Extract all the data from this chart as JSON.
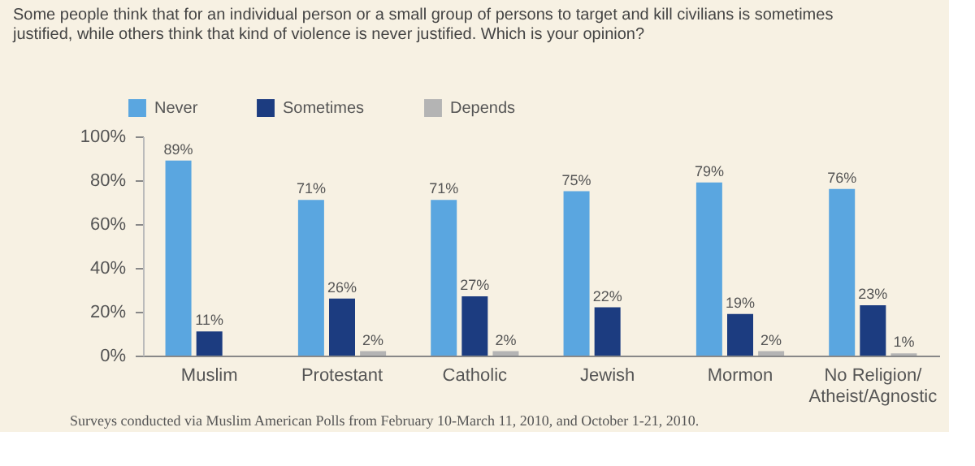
{
  "chart_data": {
    "type": "bar",
    "title": "Some people think that for an individual person or a small group of persons to target and kill civilians is sometimes justified, while others think that kind of violence is never justified. Which is your opinion?",
    "categories": [
      "Muslim",
      "Protestant",
      "Catholic",
      "Jewish",
      "Mormon",
      "No Religion/\nAtheist/Agnostic"
    ],
    "series": [
      {
        "name": "Never",
        "color": "#5aa6e0",
        "values": [
          89,
          71,
          71,
          75,
          79,
          76
        ],
        "value_labels": [
          "89%",
          "71%",
          "71%",
          "75%",
          "79%",
          "76%"
        ]
      },
      {
        "name": "Sometimes",
        "color": "#1c3c80",
        "values": [
          11,
          26,
          27,
          22,
          19,
          23
        ],
        "value_labels": [
          "11%",
          "26%",
          "27%",
          "22%",
          "19%",
          "23%"
        ]
      },
      {
        "name": "Depends",
        "color": "#b4b4b4",
        "values": [
          null,
          2,
          2,
          null,
          2,
          1
        ],
        "value_labels": [
          null,
          "2%",
          "2%",
          null,
          "2%",
          "1%"
        ]
      }
    ],
    "ylim": [
      0,
      100
    ],
    "yticks": [
      {
        "value": 0,
        "label": "0%"
      },
      {
        "value": 20,
        "label": "20%"
      },
      {
        "value": 40,
        "label": "40%"
      },
      {
        "value": 60,
        "label": "60%"
      },
      {
        "value": 80,
        "label": "80%"
      },
      {
        "value": 100,
        "label": "100%"
      }
    ],
    "grid": false,
    "legend": "top left",
    "annotations": [
      "Surveys conducted via Muslim American Polls from February 10-March 11, 2010, and October 1-21, 2010."
    ]
  }
}
